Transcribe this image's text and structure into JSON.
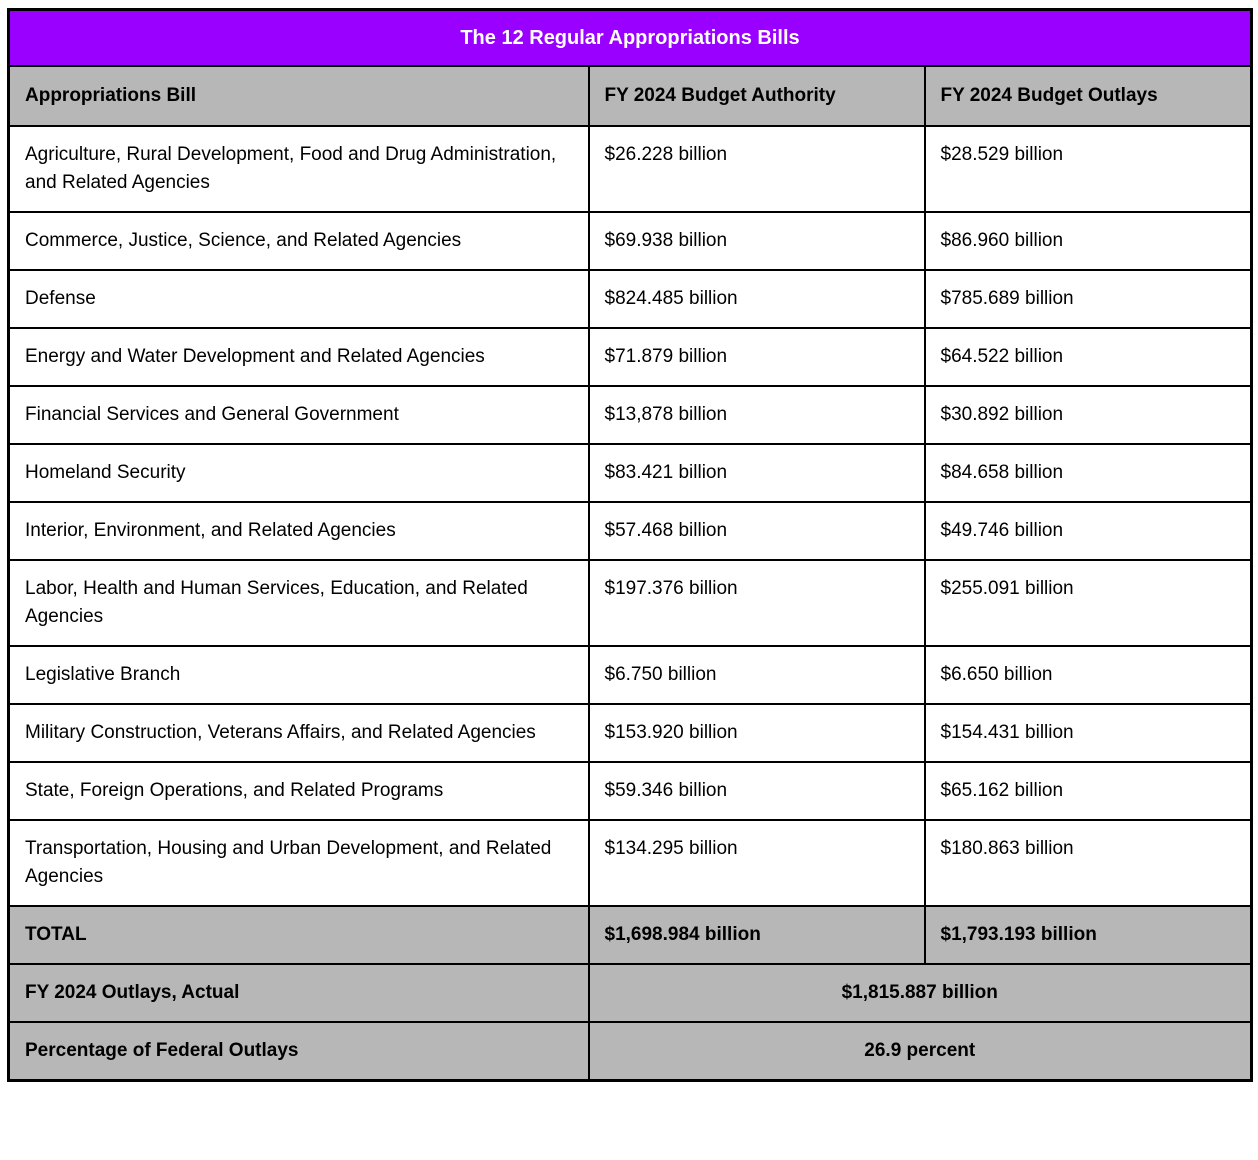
{
  "table": {
    "title": "The 12 Regular Appropriations Bills",
    "columns": [
      "Appropriations Bill",
      "FY 2024 Budget Authority",
      "FY 2024 Budget Outlays"
    ],
    "rows": [
      {
        "bill": "Agriculture, Rural Development, Food and Drug Administration, and Related Agencies",
        "authority": "$26.228 billion",
        "outlays": "$28.529 billion"
      },
      {
        "bill": "Commerce, Justice, Science, and Related Agencies",
        "authority": "$69.938 billion",
        "outlays": "$86.960 billion"
      },
      {
        "bill": "Defense",
        "authority": "$824.485 billion",
        "outlays": "$785.689 billion"
      },
      {
        "bill": "Energy and Water Development and Related Agencies",
        "authority": "$71.879 billion",
        "outlays": "$64.522 billion"
      },
      {
        "bill": "Financial Services and General Government",
        "authority": "$13,878 billion",
        "outlays": "$30.892 billion"
      },
      {
        "bill": "Homeland Security",
        "authority": "$83.421 billion",
        "outlays": "$84.658 billion"
      },
      {
        "bill": "Interior, Environment, and Related Agencies",
        "authority": "$57.468 billion",
        "outlays": "$49.746 billion"
      },
      {
        "bill": "Labor, Health and Human Services, Education, and Related Agencies",
        "authority": "$197.376 billion",
        "outlays": "$255.091 billion"
      },
      {
        "bill": "Legislative Branch",
        "authority": "$6.750 billion",
        "outlays": "$6.650 billion"
      },
      {
        "bill": "Military Construction, Veterans Affairs, and Related Agencies",
        "authority": "$153.920 billion",
        "outlays": "$154.431 billion"
      },
      {
        "bill": "State, Foreign Operations, and Related Programs",
        "authority": "$59.346 billion",
        "outlays": "$65.162 billion"
      },
      {
        "bill": "Transportation, Housing and Urban Development, and Related Agencies",
        "authority": "$134.295 billion",
        "outlays": "$180.863 billion"
      }
    ],
    "total": {
      "label": "TOTAL",
      "authority": "$1,698.984 billion",
      "outlays": "$1,793.193 billion"
    },
    "footer_rows": [
      {
        "label": "FY 2024 Outlays, Actual",
        "value": "$1,815.887 billion"
      },
      {
        "label": "Percentage of Federal Outlays",
        "value": "26.9 percent"
      }
    ],
    "colors": {
      "title_bg": "#9900ff",
      "title_text": "#ffffff",
      "band_bg": "#b7b7b7",
      "border": "#000000"
    }
  }
}
